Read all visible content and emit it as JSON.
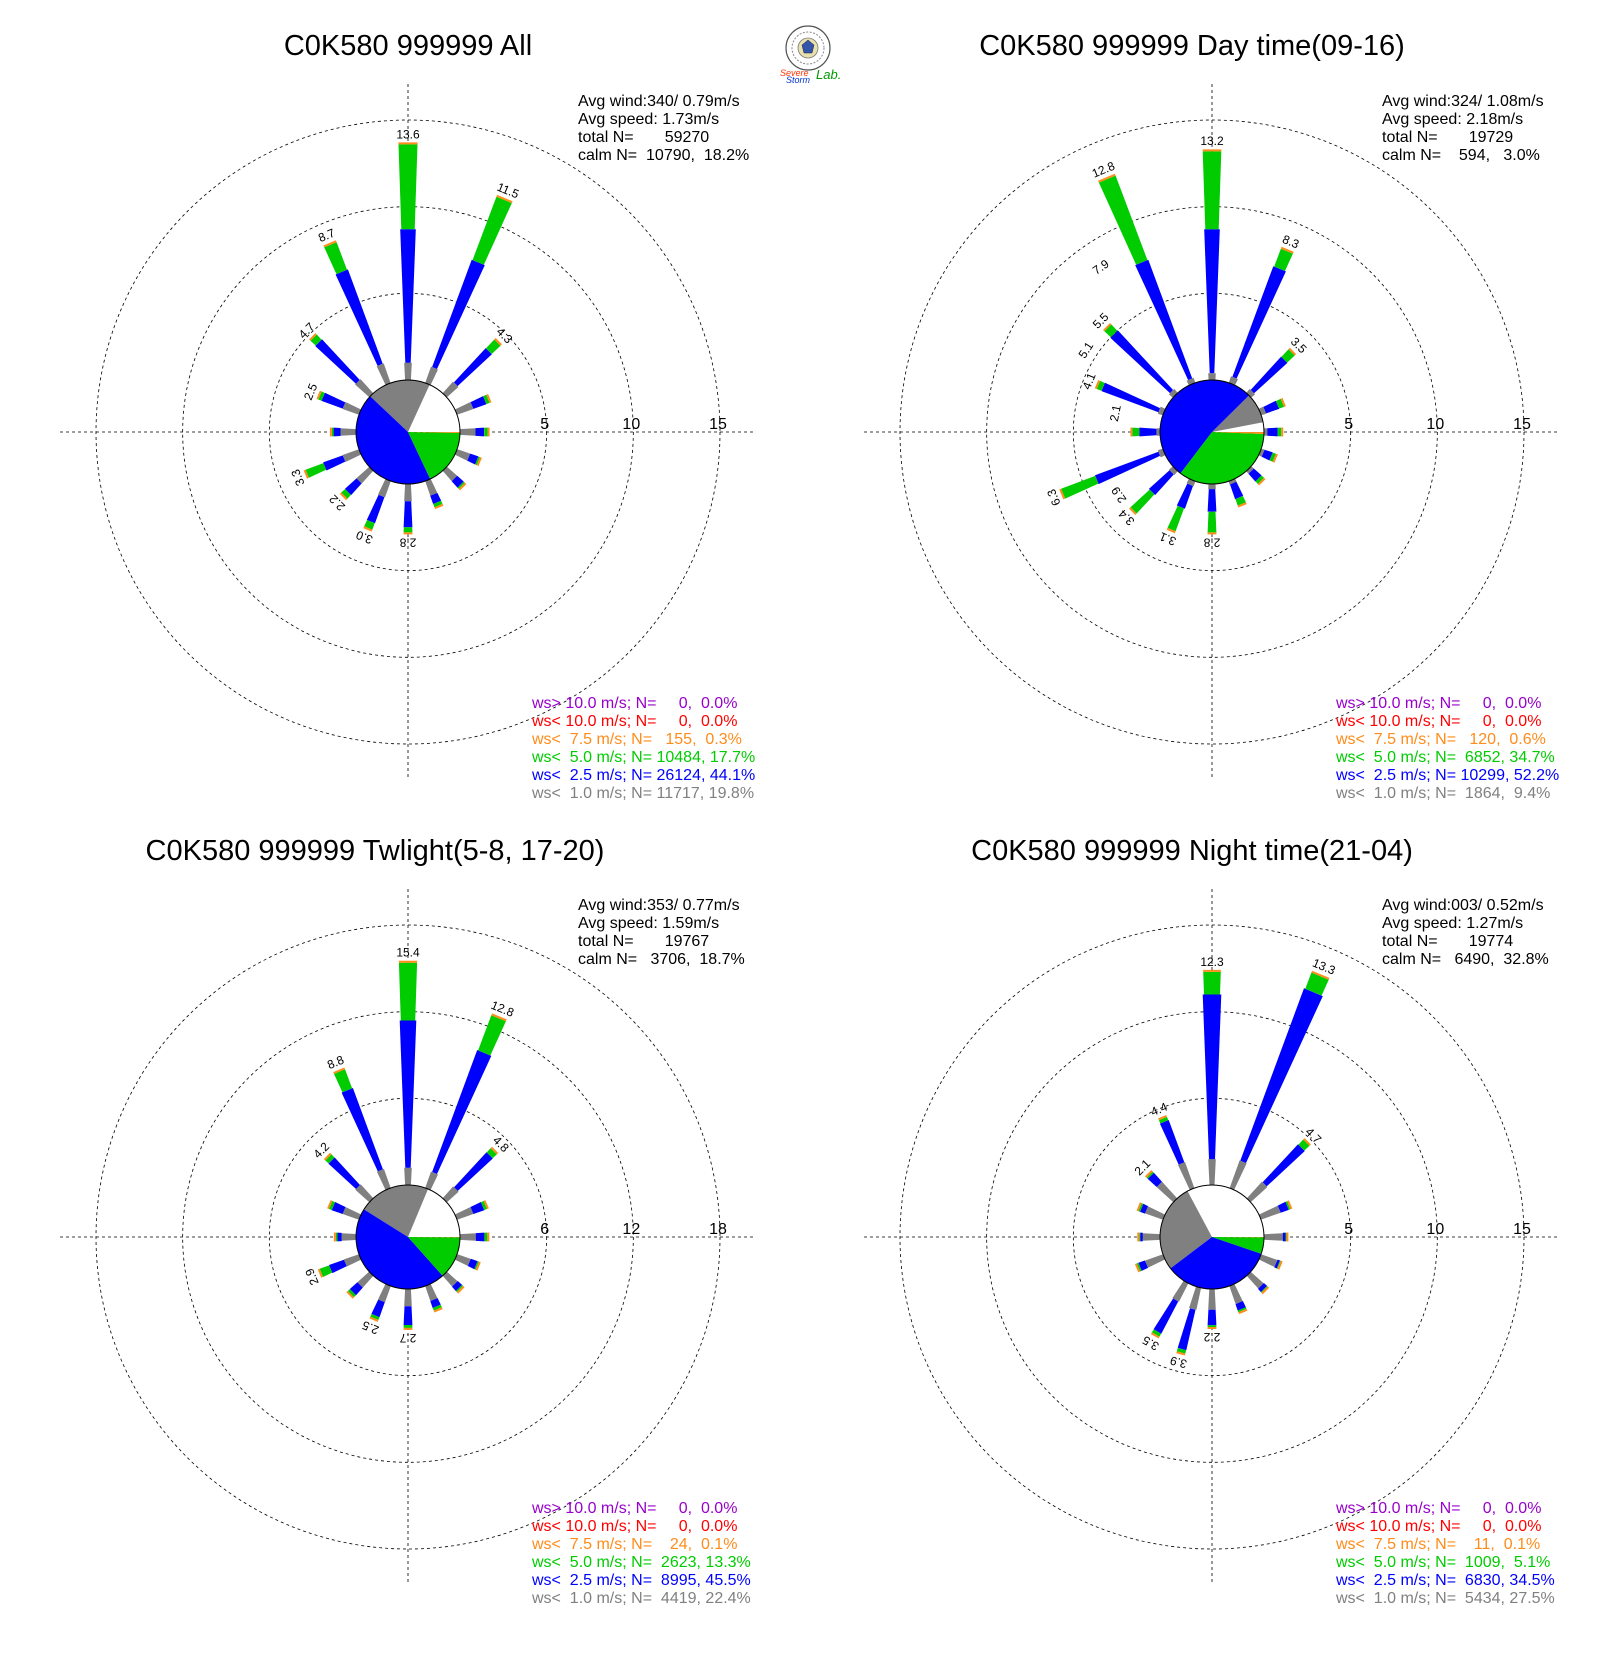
{
  "colors": {
    "ws_gt10": "#9900cc",
    "ws_lt10": "#ff0000",
    "ws_lt7_5": "#ff8c1a",
    "ws_lt5": "#00cc00",
    "ws_lt2_5": "#0000ff",
    "ws_lt1": "#808080",
    "grid": "#000000"
  },
  "logo": {
    "text_line1": "Severe",
    "text_line2": "Storm",
    "text_lab": "Lab."
  },
  "chart_data": [
    {
      "type": "windrose",
      "title": "C0K580 999999 All",
      "info": [
        "Avg wind:340/ 0.79m/s",
        "Avg speed: 1.73m/s",
        "total N=       59270",
        "calm N=  10790,  18.2%"
      ],
      "ring_values": [
        5,
        10,
        15
      ],
      "ring_labels": [
        "5",
        "10",
        "15"
      ],
      "calm_pie": [
        18.2,
        19.8,
        44.1,
        17.7,
        0.3
      ],
      "bars": [
        {
          "dir": 0,
          "total": 13.6,
          "gray": 1.0,
          "blue": 8.7,
          "label": "13.6"
        },
        {
          "dir": 22.5,
          "total": 11.5,
          "gray": 1.0,
          "blue": 7.6,
          "label": "11.5"
        },
        {
          "dir": 45,
          "total": 4.3,
          "gray": 0.9,
          "blue": 3.6,
          "label": "4.3"
        },
        {
          "dir": 67.5,
          "total": 2.0,
          "gray": 1.0,
          "blue": 1.8
        },
        {
          "dir": 90,
          "total": 1.6,
          "gray": 0.9,
          "blue": 1.4
        },
        {
          "dir": 112.5,
          "total": 1.4,
          "gray": 0.8,
          "blue": 1.3
        },
        {
          "dir": 135,
          "total": 1.4,
          "gray": 0.8,
          "blue": 1.3
        },
        {
          "dir": 157.5,
          "total": 1.6,
          "gray": 0.9,
          "blue": 1.4
        },
        {
          "dir": 180,
          "total": 2.8,
          "gray": 1.0,
          "blue": 2.5,
          "label": "2.8"
        },
        {
          "dir": 202.5,
          "total": 3.0,
          "gray": 1.0,
          "blue": 2.6,
          "label": "3.0"
        },
        {
          "dir": 225,
          "total": 2.2,
          "gray": 1.0,
          "blue": 1.9,
          "label": "2.2"
        },
        {
          "dir": 247.5,
          "total": 3.3,
          "gray": 1.0,
          "blue": 2.2,
          "label": "3.3"
        },
        {
          "dir": 270,
          "total": 1.4,
          "gray": 0.9,
          "blue": 1.3
        },
        {
          "dir": 292.5,
          "total": 2.5,
          "gray": 1.0,
          "blue": 2.3,
          "label": "2.5"
        },
        {
          "dir": 315,
          "total": 4.7,
          "gray": 1.1,
          "blue": 4.3,
          "label": "4.7"
        },
        {
          "dir": 337.5,
          "total": 8.7,
          "gray": 1.2,
          "blue": 7.0,
          "label": "8.7"
        }
      ],
      "legend": [
        "ws> 10.0 m/s; N=     0,  0.0%",
        "ws< 10.0 m/s; N=     0,  0.0%",
        "ws<  7.5 m/s; N=   155,  0.3%",
        "ws<  5.0 m/s; N= 10484, 17.7%",
        "ws<  2.5 m/s; N= 26124, 44.1%",
        "ws<  1.0 m/s; N= 11717, 19.8%"
      ]
    },
    {
      "type": "windrose",
      "title": "C0K580 999999 Day time(09-16)",
      "info": [
        "Avg wind:324/ 1.08m/s",
        "Avg speed: 2.18m/s",
        "total N=       19729",
        "calm N=    594,   3.0%"
      ],
      "ring_values": [
        5,
        10,
        15
      ],
      "ring_labels": [
        "5",
        "10",
        "15"
      ],
      "calm_pie": [
        3.0,
        9.4,
        52.2,
        34.7,
        0.6
      ],
      "bars": [
        {
          "dir": 0,
          "total": 13.2,
          "gray": 0.4,
          "blue": 8.7,
          "label": "13.2"
        },
        {
          "dir": 22.5,
          "total": 8.3,
          "gray": 0.4,
          "blue": 7.2,
          "label": "8.3"
        },
        {
          "dir": 45,
          "total": 3.5,
          "gray": 0.3,
          "blue": 2.9,
          "label": "3.5"
        },
        {
          "dir": 67.5,
          "total": 1.4,
          "gray": 0.3,
          "blue": 1.1
        },
        {
          "dir": 90,
          "total": 1.0,
          "gray": 0.2,
          "blue": 0.8
        },
        {
          "dir": 112.5,
          "total": 0.9,
          "gray": 0.2,
          "blue": 0.7
        },
        {
          "dir": 135,
          "total": 1.0,
          "gray": 0.2,
          "blue": 0.8
        },
        {
          "dir": 157.5,
          "total": 1.5,
          "gray": 0.2,
          "blue": 1.1
        },
        {
          "dir": 180,
          "total": 2.8,
          "gray": 0.3,
          "blue": 1.6,
          "label": "2.8"
        },
        {
          "dir": 202.5,
          "total": 3.1,
          "gray": 0.3,
          "blue": 1.7,
          "label": "3.1"
        },
        {
          "dir": 225,
          "total": 3.4,
          "gray": 0.3,
          "blue": 1.9,
          "label": "3.4"
        },
        {
          "dir": 247.5,
          "total": 6.3,
          "gray": 0.3,
          "blue": 4.2,
          "label": "6.3"
        },
        {
          "dir": 270,
          "total": 1.6,
          "gray": 0.2,
          "blue": 1.2
        },
        {
          "dir": 292.5,
          "total": 4.1,
          "gray": 0.3,
          "blue": 3.8,
          "label": "4.1"
        },
        {
          "dir": 315,
          "total": 5.5,
          "gray": 0.3,
          "blue": 5.0,
          "label": "5.5"
        },
        {
          "dir": 337.5,
          "total": 12.8,
          "gray": 0.3,
          "blue": 7.6,
          "label": "12.8"
        }
      ],
      "extra_labels": [
        {
          "dir": 303,
          "value": 5.1,
          "label": "5.1"
        },
        {
          "dir": 281,
          "value": 2.1,
          "label": "2.1"
        },
        {
          "dir": 236,
          "value": 2.9,
          "label": "2.9"
        },
        {
          "dir": 326,
          "value": 7.9,
          "label": "7.9"
        }
      ],
      "legend": [
        "ws> 10.0 m/s; N=     0,  0.0%",
        "ws< 10.0 m/s; N=     0,  0.0%",
        "ws<  7.5 m/s; N=   120,  0.6%",
        "ws<  5.0 m/s; N=  6852, 34.7%",
        "ws<  2.5 m/s; N= 10299, 52.2%",
        "ws<  1.0 m/s; N=  1864,  9.4%"
      ]
    },
    {
      "type": "windrose",
      "title": "C0K580 999999 Twlight(5-8, 17-20)",
      "info": [
        "Avg wind:353/ 0.77m/s",
        "Avg speed: 1.59m/s",
        "total N=       19767",
        "calm N=   3706,  18.7%"
      ],
      "ring_values": [
        6,
        12,
        18
      ],
      "ring_labels": [
        "6",
        "12",
        "18"
      ],
      "calm_pie": [
        18.7,
        22.4,
        45.5,
        13.3,
        0.1
      ],
      "bars": [
        {
          "dir": 0,
          "total": 15.4,
          "gray": 1.2,
          "blue": 11.4,
          "label": "15.4"
        },
        {
          "dir": 22.5,
          "total": 12.8,
          "gray": 1.2,
          "blue": 10.2,
          "label": "12.8"
        },
        {
          "dir": 45,
          "total": 4.8,
          "gray": 1.1,
          "blue": 4.4,
          "label": "4.8"
        },
        {
          "dir": 67.5,
          "total": 2.2,
          "gray": 1.2,
          "blue": 2.0
        },
        {
          "dir": 90,
          "total": 1.9,
          "gray": 1.1,
          "blue": 1.7
        },
        {
          "dir": 112.5,
          "total": 1.6,
          "gray": 1.0,
          "blue": 1.5
        },
        {
          "dir": 135,
          "total": 1.5,
          "gray": 1.0,
          "blue": 1.4
        },
        {
          "dir": 157.5,
          "total": 1.8,
          "gray": 1.1,
          "blue": 1.6
        },
        {
          "dir": 180,
          "total": 2.7,
          "gray": 1.2,
          "blue": 2.5,
          "label": "2.7"
        },
        {
          "dir": 202.5,
          "total": 2.5,
          "gray": 1.2,
          "blue": 2.3,
          "label": "2.5"
        },
        {
          "dir": 225,
          "total": 2.0,
          "gray": 1.1,
          "blue": 1.8
        },
        {
          "dir": 247.5,
          "total": 2.9,
          "gray": 1.1,
          "blue": 2.2,
          "label": "2.9"
        },
        {
          "dir": 270,
          "total": 1.4,
          "gray": 1.0,
          "blue": 1.3
        },
        {
          "dir": 292.5,
          "total": 2.2,
          "gray": 1.2,
          "blue": 2.0
        },
        {
          "dir": 315,
          "total": 4.2,
          "gray": 1.3,
          "blue": 3.9,
          "label": "4.2"
        },
        {
          "dir": 337.5,
          "total": 8.8,
          "gray": 1.4,
          "blue": 7.4,
          "label": "8.8"
        }
      ],
      "legend": [
        "ws> 10.0 m/s; N=     0,  0.0%",
        "ws< 10.0 m/s; N=     0,  0.0%",
        "ws<  7.5 m/s; N=    24,  0.1%",
        "ws<  5.0 m/s; N=  2623, 13.3%",
        "ws<  2.5 m/s; N=  8995, 45.5%",
        "ws<  1.0 m/s; N=  4419, 22.4%"
      ]
    },
    {
      "type": "windrose",
      "title": "C0K580 999999 Night time(21-04)",
      "info": [
        "Avg wind:003/ 0.52m/s",
        "Avg speed: 1.27m/s",
        "total N=       19774",
        "calm N=   6490,  32.8%"
      ],
      "ring_values": [
        5,
        10,
        15
      ],
      "ring_labels": [
        "5",
        "10",
        "15"
      ],
      "calm_pie": [
        32.8,
        27.5,
        34.5,
        5.1,
        0.1
      ],
      "bars": [
        {
          "dir": 0,
          "total": 12.3,
          "gray": 1.5,
          "blue": 11.0,
          "label": "12.3"
        },
        {
          "dir": 22.5,
          "total": 13.3,
          "gray": 1.7,
          "blue": 12.3,
          "label": "13.3"
        },
        {
          "dir": 45,
          "total": 4.7,
          "gray": 1.3,
          "blue": 4.3,
          "label": "4.7"
        },
        {
          "dir": 67.5,
          "total": 1.8,
          "gray": 1.2,
          "blue": 1.7
        },
        {
          "dir": 90,
          "total": 1.3,
          "gray": 1.1,
          "blue": 1.25
        },
        {
          "dir": 112.5,
          "total": 1.2,
          "gray": 1.0,
          "blue": 1.15
        },
        {
          "dir": 135,
          "total": 1.3,
          "gray": 1.0,
          "blue": 1.25
        },
        {
          "dir": 157.5,
          "total": 1.6,
          "gray": 1.1,
          "blue": 1.5
        },
        {
          "dir": 180,
          "total": 2.2,
          "gray": 1.2,
          "blue": 2.1,
          "label": "2.2"
        },
        {
          "dir": 195,
          "total": 3.9,
          "gray": 1.3,
          "blue": 3.7,
          "label": "3.9"
        },
        {
          "dir": 210,
          "total": 3.5,
          "gray": 1.2,
          "blue": 3.3,
          "label": "3.5"
        },
        {
          "dir": 247.5,
          "total": 1.6,
          "gray": 1.1,
          "blue": 1.5
        },
        {
          "dir": 270,
          "total": 1.2,
          "gray": 1.0,
          "blue": 1.15
        },
        {
          "dir": 292.5,
          "total": 1.5,
          "gray": 1.1,
          "blue": 1.4
        },
        {
          "dir": 315,
          "total": 2.1,
          "gray": 1.3,
          "blue": 2.0,
          "label": "2.1"
        },
        {
          "dir": 337.5,
          "total": 4.4,
          "gray": 1.6,
          "blue": 4.2,
          "label": "4.4"
        }
      ],
      "legend": [
        "ws> 10.0 m/s; N=     0,  0.0%",
        "ws< 10.0 m/s; N=     0,  0.0%",
        "ws<  7.5 m/s; N=    11,  0.1%",
        "ws<  5.0 m/s; N=  1009,  5.1%",
        "ws<  2.5 m/s; N=  6830, 34.5%",
        "ws<  1.0 m/s; N=  5434, 27.5%"
      ]
    }
  ]
}
